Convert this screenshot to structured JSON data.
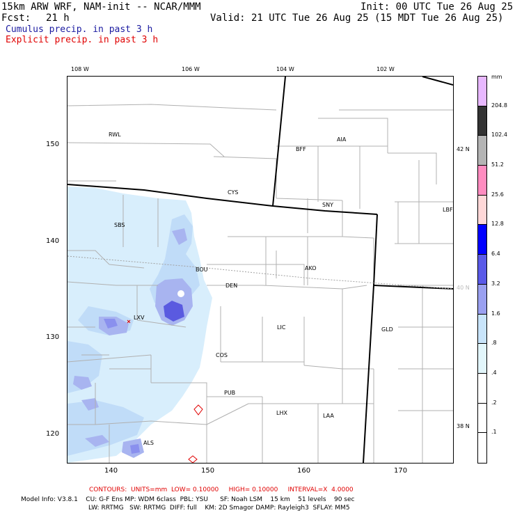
{
  "header": {
    "model_line": "15km ARW WRF, NAM-init -- NCAR/MMM",
    "init_line": "Init: 00 UTC Tue 26 Aug 25",
    "fcst_label": "Fcst:",
    "fcst_value": "21 h",
    "valid_line": "Valid: 21 UTC Tue 26 Aug 25 (15 MDT Tue 26 Aug 25)",
    "field_cumulus": "Cumulus precip. in past 3 h",
    "field_explicit": "Explicit precip. in past 3 h"
  },
  "colors": {
    "cumulus_title": "#1a1aa0",
    "explicit_title": "#e00000",
    "contour_text": "#e00000",
    "precip_light": "#d8eefc",
    "precip_mid": "#a8b4f0",
    "precip_heavy": "#5a5ae0"
  },
  "map": {
    "top_longitudes": [
      "108 W",
      "106 W",
      "104 W",
      "102 W"
    ],
    "right_latitudes": [
      "42 N",
      "40 N",
      "38 N"
    ],
    "y_grid_labels": [
      "150",
      "140",
      "130",
      "120"
    ],
    "x_grid_labels": [
      "140",
      "150",
      "160",
      "170"
    ],
    "stations": [
      {
        "id": "RWL"
      },
      {
        "id": "BFF"
      },
      {
        "id": "AIA"
      },
      {
        "id": "CYS"
      },
      {
        "id": "SNY"
      },
      {
        "id": "LBF"
      },
      {
        "id": "SBS"
      },
      {
        "id": "BOU"
      },
      {
        "id": "AKO"
      },
      {
        "id": "DEN"
      },
      {
        "id": "LXV"
      },
      {
        "id": "LIC"
      },
      {
        "id": "GLD"
      },
      {
        "id": "COS"
      },
      {
        "id": "PUB"
      },
      {
        "id": "LHX"
      },
      {
        "id": "LAA"
      },
      {
        "id": "ALS"
      }
    ]
  },
  "colorbar": {
    "unit": "mm",
    "labels": [
      "204.8",
      "102.4",
      "51.2",
      "25.6",
      "12.8",
      "6.4",
      "3.2",
      "1.6",
      ".8",
      ".4",
      ".2",
      ".1"
    ],
    "colors": [
      "#e8b8ff",
      "#333333",
      "#b4b4b4",
      "#ff8cc0",
      "#ffd8d8",
      "#0000ff",
      "#5a5ae8",
      "#9aa0f0",
      "#c8e4fa",
      "#e2f6fb",
      "#ffffff",
      "#ffffff"
    ]
  },
  "footer": {
    "contours_line": "CONTOURS:  UNITS=mm  LOW= 0.10000     HIGH= 0.10000     INTERVAL=X  4.0000",
    "model_info_1": "Model Info: V3.8.1    CU: G-F Ens MP: WDM 6class  PBL: YSU      SF: Noah LSM    15 km    51 levels    90 sec",
    "model_info_2": "LW: RRTMG   SW: RRTMG  DIFF: full    KM: 2D Smagor DAMP: Rayleigh3  SFLAY: MM5"
  }
}
